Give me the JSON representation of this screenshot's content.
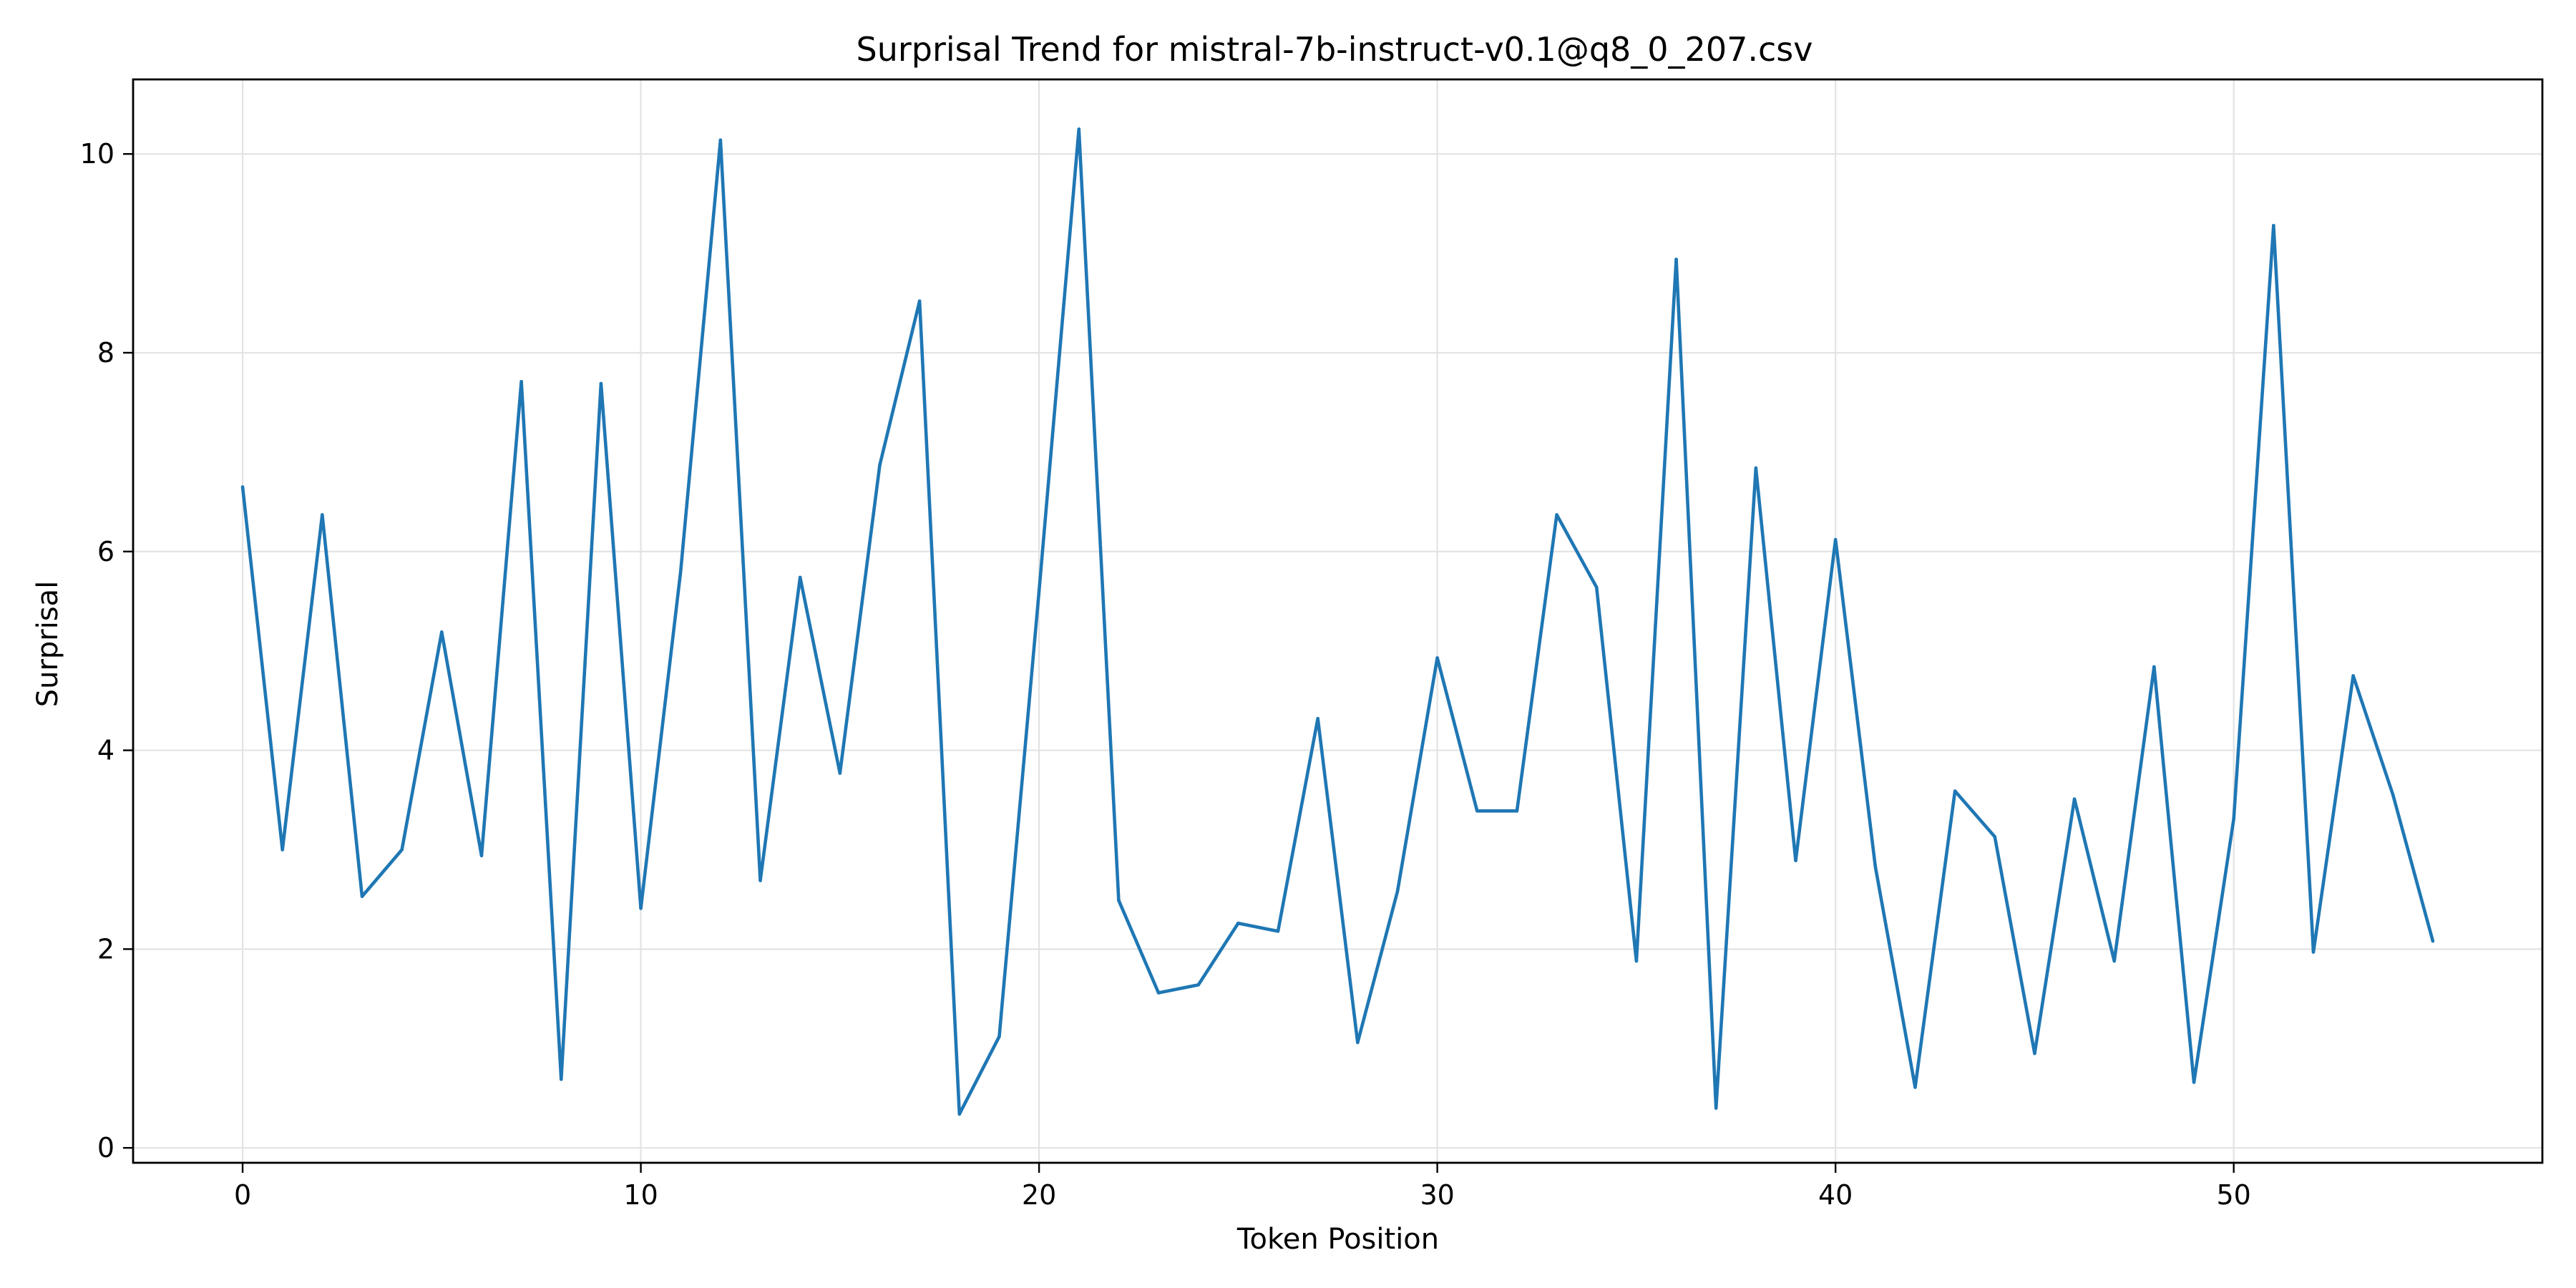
{
  "chart_data": {
    "type": "line",
    "title": "Surprisal Trend for mistral-7b-instruct-v0.1@q8_0_207.csv",
    "xlabel": "Token Position",
    "ylabel": "Surprisal",
    "xlim": [
      -2.75,
      57.75
    ],
    "ylim": [
      -0.15,
      10.75
    ],
    "xticks": [
      0,
      10,
      20,
      30,
      40,
      50
    ],
    "yticks": [
      0,
      2,
      4,
      6,
      8,
      10
    ],
    "xtick_labels": [
      "0",
      "10",
      "20",
      "30",
      "40",
      "50"
    ],
    "ytick_labels": [
      "0",
      "2",
      "4",
      "6",
      "8",
      "10"
    ],
    "grid": true,
    "series": [
      {
        "name": "Surprisal",
        "color": "#1f77b4",
        "x": [
          0,
          1,
          2,
          3,
          4,
          5,
          6,
          7,
          8,
          9,
          10,
          11,
          12,
          13,
          14,
          15,
          16,
          17,
          18,
          19,
          20,
          21,
          22,
          23,
          24,
          25,
          26,
          27,
          28,
          29,
          30,
          31,
          32,
          33,
          34,
          35,
          36,
          37,
          38,
          39,
          40,
          41,
          42,
          43,
          44,
          45,
          46,
          47,
          48,
          49,
          50,
          51,
          52,
          53,
          54,
          55
        ],
        "values": [
          6.65,
          3.0,
          6.37,
          2.53,
          3.0,
          5.19,
          2.94,
          7.71,
          0.69,
          7.69,
          2.41,
          5.8,
          10.14,
          2.69,
          5.74,
          3.77,
          6.87,
          8.52,
          0.34,
          1.12,
          5.6,
          10.25,
          2.49,
          1.56,
          1.64,
          2.26,
          2.18,
          4.32,
          1.06,
          2.58,
          4.93,
          3.39,
          3.39,
          6.37,
          5.64,
          1.88,
          8.94,
          0.4,
          6.84,
          2.89,
          6.12,
          2.83,
          0.61,
          3.59,
          3.13,
          0.95,
          3.51,
          1.88,
          4.84,
          0.66,
          3.31,
          9.28,
          1.97,
          4.75,
          3.55,
          2.08
        ]
      }
    ]
  }
}
